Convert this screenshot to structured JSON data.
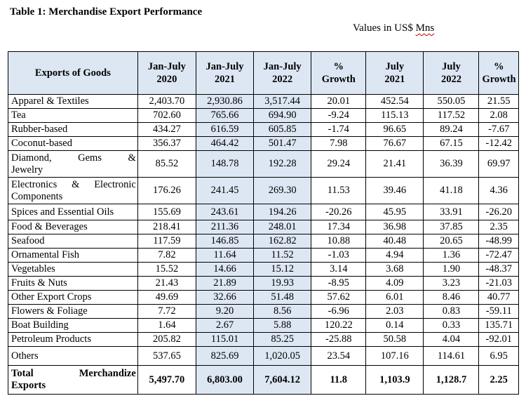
{
  "title": "Table 1: Merchandise Export Performance",
  "units": {
    "prefix": "Values in US$ ",
    "suffix": "Mns"
  },
  "headers": {
    "goods": "Exports of Goods",
    "jan_july_2020": [
      "Jan-July",
      "2020"
    ],
    "jan_july_2021": [
      "Jan-July",
      "2021"
    ],
    "jan_july_2022": [
      "Jan-July",
      "2022"
    ],
    "growth_ytd": [
      "%",
      "Growth"
    ],
    "july_2021": [
      "July",
      "2021"
    ],
    "july_2022": [
      "July",
      "2022"
    ],
    "growth_month": [
      "%",
      "Growth"
    ]
  },
  "rows": [
    {
      "name": "Apparel & Textiles",
      "v": [
        "2,403.70",
        "2,930.86",
        "3,517.44",
        "20.01",
        "452.54",
        "550.05",
        "21.55"
      ]
    },
    {
      "name": "Tea",
      "v": [
        "702.60",
        "765.66",
        "694.90",
        "-9.24",
        "115.13",
        "117.52",
        "2.08"
      ]
    },
    {
      "name": "Rubber-based",
      "v": [
        "434.27",
        "616.59",
        "605.85",
        "-1.74",
        "96.65",
        "89.24",
        "-7.67"
      ]
    },
    {
      "name": "Coconut-based",
      "v": [
        "356.37",
        "464.42",
        "501.47",
        "7.98",
        "76.67",
        "67.15",
        "-12.42"
      ]
    },
    {
      "name": "Diamond, Gems & Jewelry",
      "v": [
        "85.52",
        "148.78",
        "192.28",
        "29.24",
        "21.41",
        "36.39",
        "69.97"
      ]
    },
    {
      "name": "Electronics & Electronic Components",
      "v": [
        "176.26",
        "241.45",
        "269.30",
        "11.53",
        "39.46",
        "41.18",
        "4.36"
      ]
    },
    {
      "name": "Spices and Essential Oils",
      "v": [
        "155.69",
        "243.61",
        "194.26",
        "-20.26",
        "45.95",
        "33.91",
        "-26.20"
      ]
    },
    {
      "name": "Food & Beverages",
      "v": [
        "218.41",
        "211.36",
        "248.01",
        "17.34",
        "36.98",
        "37.85",
        "2.35"
      ]
    },
    {
      "name": "Seafood",
      "v": [
        "117.59",
        "146.85",
        "162.82",
        "10.88",
        "40.48",
        "20.65",
        "-48.99"
      ]
    },
    {
      "name": "Ornamental Fish",
      "v": [
        "7.82",
        "11.64",
        "11.52",
        "-1.03",
        "4.94",
        "1.36",
        "-72.47"
      ]
    },
    {
      "name": "Vegetables",
      "v": [
        "15.52",
        "14.66",
        "15.12",
        "3.14",
        "3.68",
        "1.90",
        "-48.37"
      ]
    },
    {
      "name": "Fruits & Nuts",
      "v": [
        "21.43",
        "21.89",
        "19.93",
        "-8.95",
        "4.09",
        "3.23",
        "-21.03"
      ]
    },
    {
      "name": "Other Export Crops",
      "v": [
        "49.69",
        "32.66",
        "51.48",
        "57.62",
        "6.01",
        "8.46",
        "40.77"
      ]
    },
    {
      "name": "Flowers & Foliage",
      "v": [
        "7.72",
        "9.20",
        "8.56",
        "-6.96",
        "2.03",
        "0.83",
        "-59.11"
      ]
    },
    {
      "name": "Boat Building",
      "v": [
        "1.64",
        "2.67",
        "5.88",
        "120.22",
        "0.14",
        "0.33",
        "135.71"
      ]
    },
    {
      "name": "Petroleum Products",
      "v": [
        "205.82",
        "115.01",
        "85.25",
        "-25.88",
        "50.58",
        "4.04",
        "-92.01"
      ]
    },
    {
      "name": "Others",
      "v": [
        "537.65",
        "825.69",
        "1,020.05",
        "23.54",
        "107.16",
        "114.61",
        "6.95"
      ]
    }
  ],
  "total": {
    "name_a": "Total",
    "name_b": "Merchandize",
    "name_c": "Exports",
    "v": [
      "5,497.70",
      "6,803.00",
      "7,604.12",
      "11.8",
      "1,103.9",
      "1,128.7",
      "2.25"
    ]
  }
}
